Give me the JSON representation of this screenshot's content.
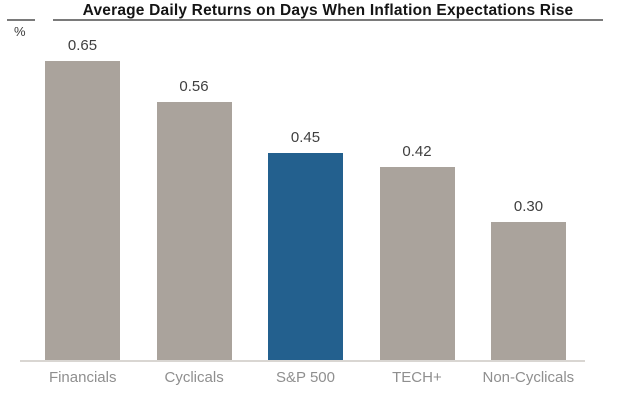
{
  "chart_data": {
    "type": "bar",
    "title": "Average Daily Returns on Days When Inflation Expectations Rise",
    "unit_label": "%",
    "categories": [
      "Financials",
      "Cyclicals",
      "S&P 500",
      "TECH+",
      "Non-Cyclicals"
    ],
    "values": [
      0.65,
      0.56,
      0.45,
      0.42,
      0.3
    ],
    "value_labels": [
      "0.65",
      "0.56",
      "0.45",
      "0.42",
      "0.30"
    ],
    "highlight_index": 2,
    "highlight_category": "S&P 500",
    "ylim": [
      0,
      0.7
    ],
    "grid": "off",
    "legend": "none",
    "colors": {
      "bar": "#aaa39c",
      "highlight_bar": "#23608e",
      "axis_line": "#d9d6d2",
      "title_rule": "#7a7a7a",
      "title_text": "#141414",
      "value_label_text": "#3f3f3f",
      "category_label_text": "#8f8f8f"
    }
  }
}
